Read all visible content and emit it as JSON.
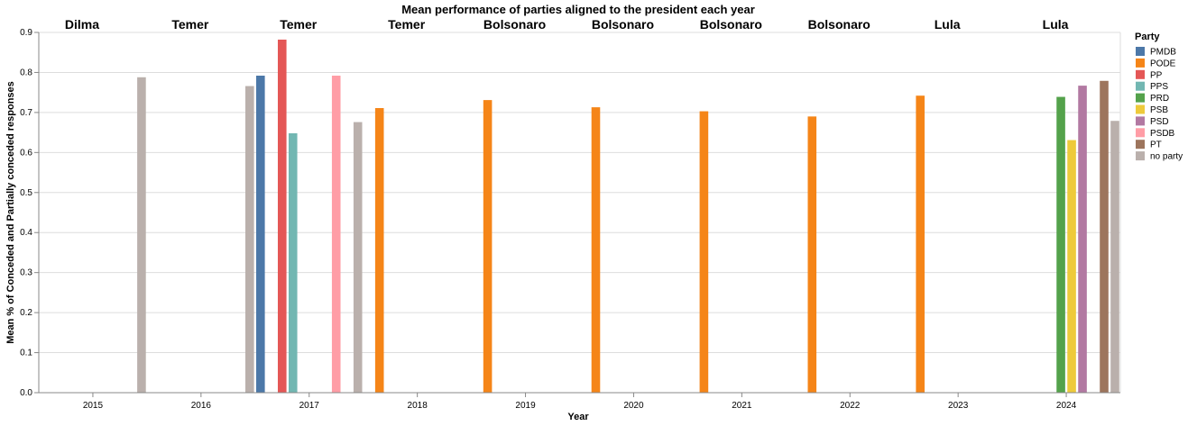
{
  "chart_data": {
    "type": "bar",
    "title": "Mean performance of parties aligned to the president each year",
    "xlabel": "Year",
    "ylabel": "Mean % of Conceded and Partially conceded responses",
    "ylim": [
      0,
      0.9
    ],
    "yticks": [
      "0.0",
      "0.1",
      "0.2",
      "0.3",
      "0.4",
      "0.5",
      "0.6",
      "0.7",
      "0.8",
      "0.9"
    ],
    "grid": true,
    "legend": {
      "title": "Party",
      "position": "right"
    },
    "categories": [
      "2015",
      "2016",
      "2017",
      "2018",
      "2019",
      "2020",
      "2021",
      "2022",
      "2023",
      "2024"
    ],
    "presidents": [
      "Dilma",
      "Temer",
      "Temer",
      "Temer",
      "Bolsonaro",
      "Bolsonaro",
      "Bolsonaro",
      "Bolsonaro",
      "Lula",
      "Lula"
    ],
    "parties": [
      {
        "name": "PMDB",
        "color": "#4c78a8"
      },
      {
        "name": "PODE",
        "color": "#f58518"
      },
      {
        "name": "PP",
        "color": "#e45756"
      },
      {
        "name": "PPS",
        "color": "#72b7b2"
      },
      {
        "name": "PRD",
        "color": "#54a24b"
      },
      {
        "name": "PSB",
        "color": "#eeca3b"
      },
      {
        "name": "PSD",
        "color": "#b279a2"
      },
      {
        "name": "PSDB",
        "color": "#ff9da6"
      },
      {
        "name": "PT",
        "color": "#9d755d"
      },
      {
        "name": "no party",
        "color": "#bab0ac"
      }
    ],
    "series": [
      {
        "name": "PMDB",
        "values": [
          null,
          null,
          0.792,
          null,
          null,
          null,
          null,
          null,
          null,
          null
        ]
      },
      {
        "name": "PODE",
        "values": [
          null,
          null,
          null,
          0.711,
          0.731,
          0.713,
          0.703,
          0.69,
          0.742,
          null
        ]
      },
      {
        "name": "PP",
        "values": [
          null,
          null,
          0.882,
          null,
          null,
          null,
          null,
          null,
          null,
          null
        ]
      },
      {
        "name": "PPS",
        "values": [
          null,
          null,
          0.648,
          null,
          null,
          null,
          null,
          null,
          null,
          null
        ]
      },
      {
        "name": "PRD",
        "values": [
          null,
          null,
          null,
          null,
          null,
          null,
          null,
          null,
          null,
          0.739
        ]
      },
      {
        "name": "PSB",
        "values": [
          null,
          null,
          null,
          null,
          null,
          null,
          null,
          null,
          null,
          0.631
        ]
      },
      {
        "name": "PSD",
        "values": [
          null,
          null,
          null,
          null,
          null,
          null,
          null,
          null,
          null,
          0.767
        ]
      },
      {
        "name": "PSDB",
        "values": [
          null,
          null,
          0.792,
          null,
          null,
          null,
          null,
          null,
          null,
          null
        ]
      },
      {
        "name": "PT",
        "values": [
          null,
          null,
          null,
          null,
          null,
          null,
          null,
          null,
          null,
          0.779
        ]
      },
      {
        "name": "no party",
        "values": [
          0.788,
          0.766,
          0.676,
          null,
          null,
          null,
          null,
          null,
          null,
          0.679
        ]
      }
    ]
  }
}
